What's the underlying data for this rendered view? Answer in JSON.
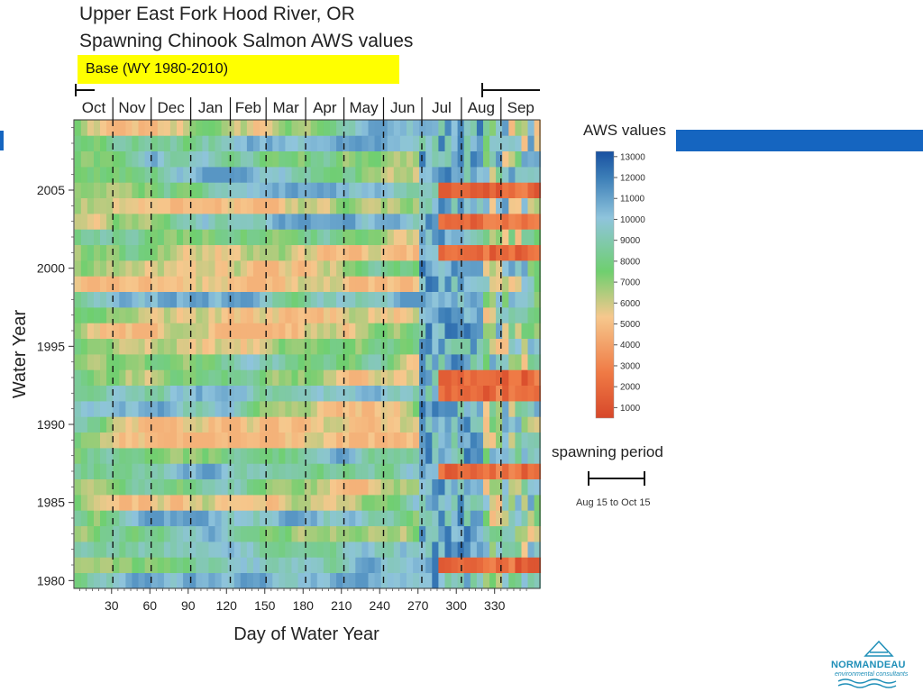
{
  "slide": {
    "title_line1": "Upper East Fork Hood River, OR",
    "title_line2": "Spawning Chinook Salmon AWS values",
    "scenario_label": "Base (WY 1980-2010)"
  },
  "legend": {
    "title": "AWS values",
    "ticks": [
      "13000",
      "12000",
      "11000",
      "10000",
      "9000",
      "8000",
      "7000",
      "6000",
      "5000",
      "4000",
      "3000",
      "2000",
      "1000"
    ],
    "colors": {
      "low": "#d7482a",
      "mid_low": "#f6c88d",
      "mid": "#6fcf6f",
      "mid_high": "#8fc4dc",
      "high": "#1f5fa0"
    }
  },
  "spawning": {
    "label": "spawning period",
    "range_text": "Aug 15 to Oct 15"
  },
  "logo": {
    "name": "NORMANDEAU",
    "tagline": "environmental consultants"
  },
  "chart_data": {
    "type": "heatmap",
    "title": "Upper East Fork Hood River, OR Spawning Chinook Salmon AWS values",
    "xlabel": "Day of Water Year",
    "ylabel": "Water Year",
    "xlim": [
      1,
      365
    ],
    "ylim": [
      1980,
      2009
    ],
    "x_ticks": [
      30,
      60,
      90,
      120,
      150,
      180,
      210,
      240,
      270,
      300,
      330
    ],
    "y_ticks": [
      1980,
      1985,
      1990,
      1995,
      2000,
      2005
    ],
    "month_labels": [
      "Oct",
      "Nov",
      "Dec",
      "Jan",
      "Feb",
      "Mar",
      "Apr",
      "May",
      "Jun",
      "Jul",
      "Aug",
      "Sep"
    ],
    "month_boundaries": [
      31,
      61,
      92,
      123,
      151,
      182,
      212,
      243,
      273,
      304,
      335
    ],
    "colorbar_range": [
      1000,
      13000
    ],
    "spawning_period": {
      "start": "Aug 15",
      "end": "Oct 15"
    },
    "row_profile": [
      {
        "year": 2009,
        "low_late_season": false
      },
      {
        "year": 2005,
        "low_late_season": true
      },
      {
        "year": 2003,
        "low_late_season": true
      },
      {
        "year": 2001,
        "low_late_season": true
      },
      {
        "year": 1993,
        "low_late_season": true
      },
      {
        "year": 1992,
        "low_late_season": true
      },
      {
        "year": 1987,
        "low_late_season": true
      },
      {
        "year": 1981,
        "low_late_season": true
      }
    ]
  }
}
